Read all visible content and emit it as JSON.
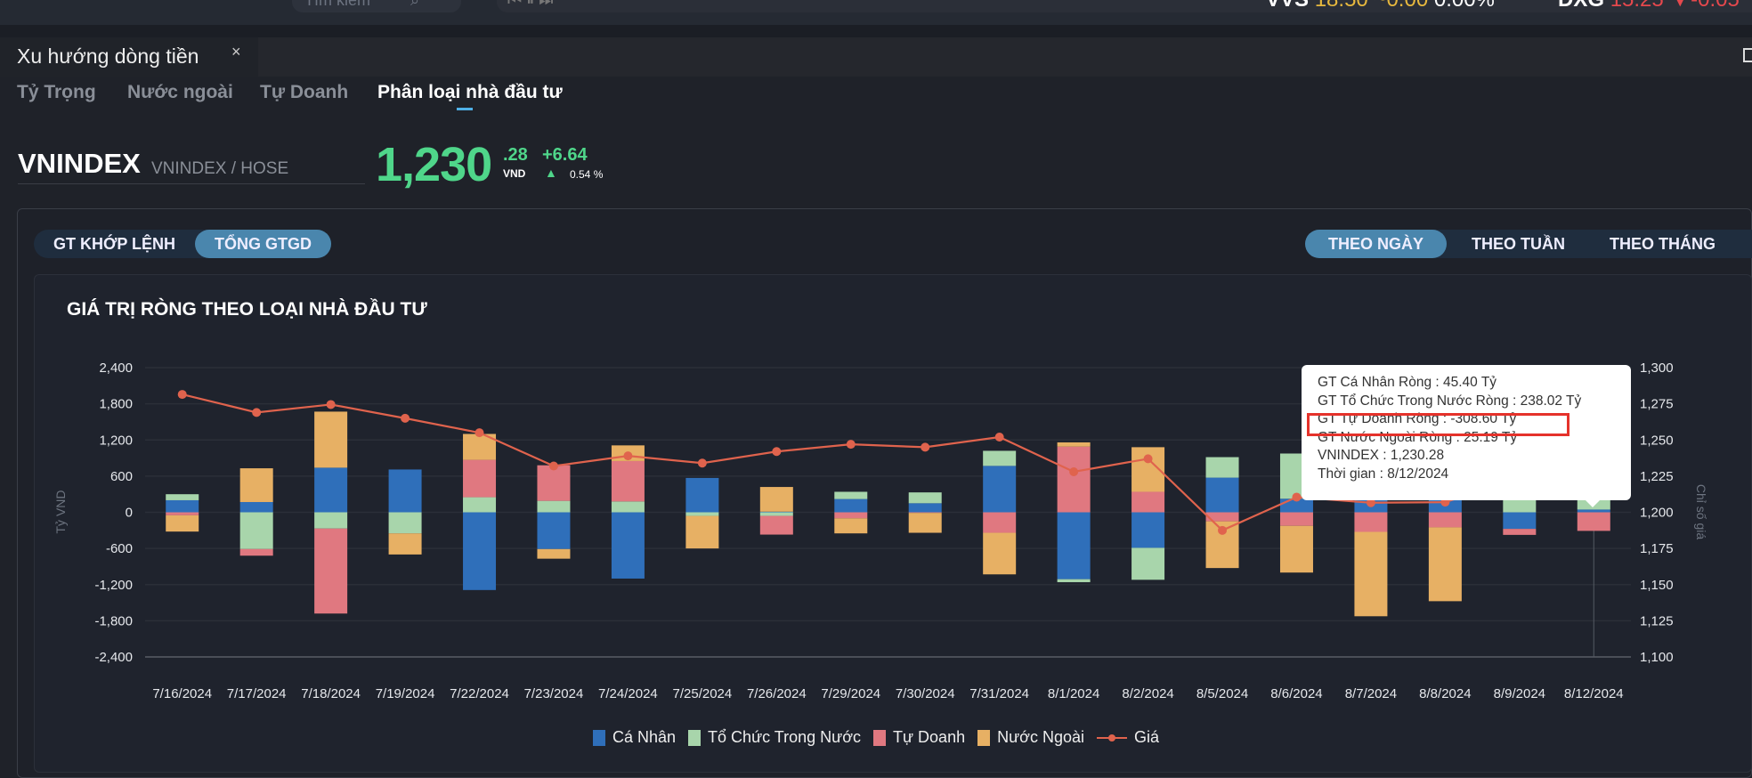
{
  "topbar": {
    "search_placeholder": "Tìm kiếm",
    "media_icons": "⏮ ⏸ ⏭",
    "tickers": [
      {
        "symbol": "VVS",
        "price": "18.50",
        "change": "~0.00",
        "pct": "0.00%"
      },
      {
        "symbol": "DXG",
        "price": "15.25",
        "change": "▼-0.05"
      }
    ]
  },
  "tab": {
    "title": "Xu hướng dòng tiền",
    "close": "×"
  },
  "subtabs": [
    "Tỷ Trọng",
    "Nước ngoài",
    "Tự Doanh",
    "Phân loại nhà đầu tư"
  ],
  "index": {
    "name": "VNINDEX",
    "sub": "VNINDEX / HOSE",
    "price_int": "1,230",
    "price_dec": ".28",
    "unit": "VND",
    "change": "+6.64",
    "pct": "0.54 %"
  },
  "value_toggle": [
    "GT KHỚP LỆNH",
    "TỔNG GTGD"
  ],
  "period_toggle": [
    "THEO NGÀY",
    "THEO TUẦN",
    "THEO THÁNG"
  ],
  "colors": {
    "ca_nhan": "#2f6fba",
    "to_chuc": "#a8d5ab",
    "tu_doanh": "#e07880",
    "nuoc_ngoai": "#e7b064",
    "gia": "#e0634d"
  },
  "tooltip": [
    "GT Cá Nhân Ròng  : 45.40 Tỷ",
    "GT Tổ Chức Trong Nước Ròng : 238.02 Tỷ",
    "GT Tự Doanh Ròng : -308.60 Tỷ",
    "GT Nước Ngoài Ròng : 25.19 Tỷ",
    "VNINDEX : 1,230.28",
    "Thời gian : 8/12/2024"
  ],
  "chart_data": {
    "type": "bar",
    "title": "GIÁ TRỊ RÒNG THEO LOẠI NHÀ ĐẦU TƯ",
    "ylabel": "Tỷ VND",
    "y2label": "Chỉ số giá",
    "ylim": [
      -2400,
      2400
    ],
    "y2lim": [
      1100,
      1300
    ],
    "yticks": [
      "2,400",
      "1,800",
      "1,200",
      "600",
      "0",
      "-600",
      "-1,200",
      "-1,800",
      "-2,400"
    ],
    "y2ticks": [
      "1,300",
      "1,275",
      "1,250",
      "1,225",
      "1,200",
      "1,175",
      "1,150",
      "1,125",
      "1,100"
    ],
    "categories": [
      "7/16/2024",
      "7/17/2024",
      "7/18/2024",
      "7/19/2024",
      "7/22/2024",
      "7/23/2024",
      "7/24/2024",
      "7/25/2024",
      "7/26/2024",
      "7/29/2024",
      "7/30/2024",
      "7/31/2024",
      "8/1/2024",
      "8/2/2024",
      "8/5/2024",
      "8/6/2024",
      "8/7/2024",
      "8/8/2024",
      "8/9/2024",
      "8/12/2024"
    ],
    "series": [
      {
        "name": "Cá Nhân",
        "stack": true,
        "values": [
          200,
          170,
          740,
          710,
          -1290,
          -610,
          -1100,
          570,
          10,
          220,
          150,
          770,
          -1110,
          -590,
          575,
          225,
          350,
          300,
          -275,
          45.4
        ]
      },
      {
        "name": "Tổ Chức Trong Nước",
        "stack": true,
        "values": [
          100,
          -610,
          -270,
          -350,
          250,
          190,
          180,
          -60,
          -60,
          120,
          180,
          250,
          -50,
          -530,
          340,
          750,
          150,
          100,
          210,
          238.02
        ]
      },
      {
        "name": "Tự Doanh",
        "stack": true,
        "values": [
          -50,
          -110,
          -1410,
          0,
          620,
          590,
          670,
          0,
          -310,
          -100,
          -10,
          -340,
          1090,
          340,
          -150,
          -225,
          -325,
          -250,
          -100,
          -308.6
        ]
      },
      {
        "name": "Nước Ngoài",
        "stack": true,
        "values": [
          -270,
          560,
          930,
          -350,
          430,
          -160,
          260,
          -540,
          410,
          -250,
          -330,
          -690,
          70,
          740,
          -775,
          -775,
          -1400,
          -1225,
          0,
          25.19
        ]
      },
      {
        "name": "Giá",
        "type": "line",
        "axis": "right",
        "values": [
          1281.5,
          1269,
          1274.5,
          1265,
          1255,
          1232,
          1239,
          1234,
          1242,
          1247,
          1245,
          1252,
          1228,
          1237,
          1187.5,
          1210.5,
          1206.6,
          1207,
          1223.6,
          1230.28
        ]
      }
    ],
    "legend": [
      "Cá Nhân",
      "Tổ Chức Trong Nước",
      "Tự Doanh",
      "Nước Ngoài",
      "Giá"
    ],
    "legend_position": "bottom",
    "grid": true
  }
}
